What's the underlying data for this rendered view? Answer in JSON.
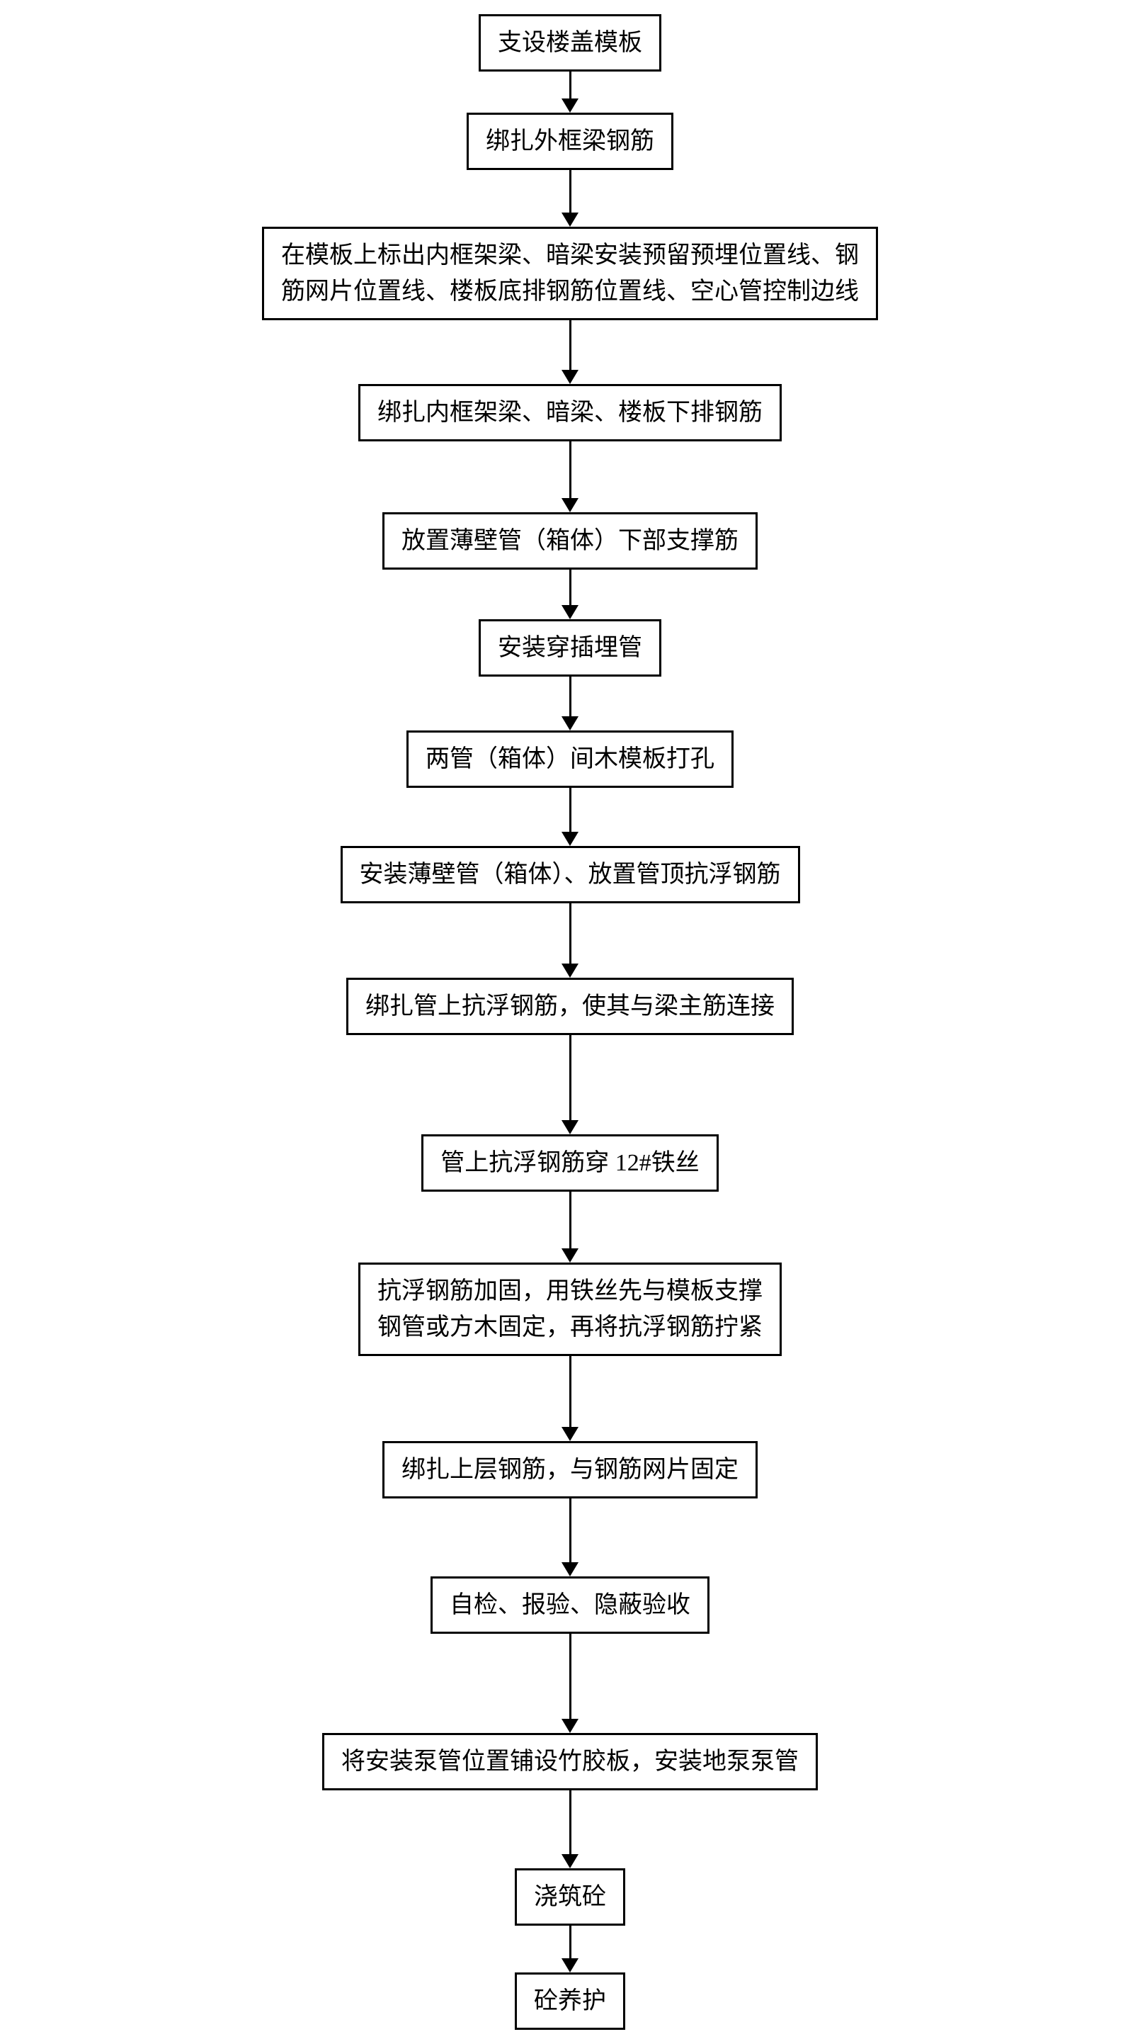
{
  "flowchart": {
    "type": "flowchart",
    "direction": "vertical",
    "background_color": "#ffffff",
    "node_border_color": "#000000",
    "node_border_width": 3,
    "node_bg_color": "#ffffff",
    "text_color": "#000000",
    "font_family": "SimSun",
    "font_size": 34,
    "arrow_color": "#000000",
    "arrow_line_width": 3,
    "arrow_head_size": 20,
    "nodes": [
      {
        "id": "n1",
        "label": "支设楼盖模板",
        "arrow_gap": 38
      },
      {
        "id": "n2",
        "label": "绑扎外框梁钢筋",
        "arrow_gap": 60
      },
      {
        "id": "n3",
        "label": "在模板上标出内框架梁、暗梁安装预留预埋位置线、钢\n筋网片位置线、楼板底排钢筋位置线、空心管控制边线",
        "arrow_gap": 70
      },
      {
        "id": "n4",
        "label": "绑扎内框架梁、暗梁、楼板下排钢筋",
        "arrow_gap": 80
      },
      {
        "id": "n5",
        "label": "放置薄壁管（箱体）下部支撑筋",
        "arrow_gap": 50
      },
      {
        "id": "n6",
        "label": "安装穿插埋管",
        "arrow_gap": 56
      },
      {
        "id": "n7",
        "label": "两管（箱体）间木模板打孔",
        "arrow_gap": 62
      },
      {
        "id": "n8",
        "label": "安装薄壁管（箱体）、放置管顶抗浮钢筋",
        "arrow_gap": 85
      },
      {
        "id": "n9",
        "label": "绑扎管上抗浮钢筋，使其与梁主筋连接",
        "arrow_gap": 120
      },
      {
        "id": "n10",
        "label": "管上抗浮钢筋穿 12#铁丝",
        "arrow_gap": 80
      },
      {
        "id": "n11",
        "label": "抗浮钢筋加固，用铁丝先与模板支撑\n钢管或方木固定，再将抗浮钢筋拧紧",
        "arrow_gap": 100
      },
      {
        "id": "n12",
        "label": "绑扎上层钢筋，与钢筋网片固定",
        "arrow_gap": 90
      },
      {
        "id": "n13",
        "label": "自检、报验、隐蔽验收",
        "arrow_gap": 120
      },
      {
        "id": "n14",
        "label": "将安装泵管位置铺设竹胶板，安装地泵泵管",
        "arrow_gap": 90
      },
      {
        "id": "n15",
        "label": "浇筑砼",
        "arrow_gap": 46
      },
      {
        "id": "n16",
        "label": "砼养护",
        "arrow_gap": 0
      }
    ]
  }
}
